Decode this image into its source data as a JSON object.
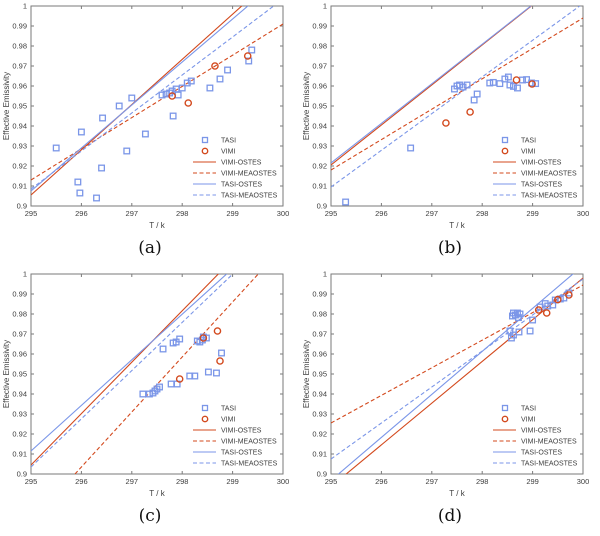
{
  "figure": {
    "background": "#ffffff"
  },
  "colors": {
    "tasi": "#7b96e8",
    "vimi": "#d3491d",
    "axis_box": "#7a7a7a",
    "tick_text": "#3d3d3d",
    "caption": "#111111"
  },
  "chart_data": [
    {
      "id": "a",
      "caption": "(a)",
      "type": "scatter",
      "xlabel": "T / k",
      "ylabel": "Effective Emissivity",
      "xlim": [
        295,
        300
      ],
      "ylim": [
        0.9,
        1
      ],
      "xticks": [
        295,
        296,
        297,
        298,
        299,
        300
      ],
      "xticklabels": [
        "295",
        "296",
        "297",
        "298",
        "299",
        "300"
      ],
      "yticks": [
        0.9,
        0.91,
        0.92,
        0.93,
        0.94,
        0.95,
        0.96,
        0.97,
        0.98,
        0.99,
        1
      ],
      "yticklabels": [
        "0.9",
        "0.91",
        "0.92",
        "0.93",
        "0.94",
        "0.95",
        "0.96",
        "0.97",
        "0.98",
        "0.99",
        "1"
      ],
      "grid": false,
      "legend_position": "inside-lower-right",
      "series": [
        {
          "name": "TASI",
          "type": "scatter",
          "marker": "square",
          "color_key": "tasi",
          "points": [
            [
              295.5,
              0.929
            ],
            [
              295.93,
              0.912
            ],
            [
              295.97,
              0.9065
            ],
            [
              296.0,
              0.937
            ],
            [
              296.3,
              0.904
            ],
            [
              296.4,
              0.919
            ],
            [
              296.42,
              0.944
            ],
            [
              296.75,
              0.95
            ],
            [
              296.9,
              0.9275
            ],
            [
              297.0,
              0.954
            ],
            [
              297.27,
              0.936
            ],
            [
              297.6,
              0.9555
            ],
            [
              297.68,
              0.956
            ],
            [
              297.75,
              0.9565
            ],
            [
              297.8,
              0.9575
            ],
            [
              297.82,
              0.945
            ],
            [
              297.88,
              0.9585
            ],
            [
              297.92,
              0.9555
            ],
            [
              298.0,
              0.959
            ],
            [
              298.1,
              0.9615
            ],
            [
              298.18,
              0.9625
            ],
            [
              298.55,
              0.959
            ],
            [
              298.75,
              0.9635
            ],
            [
              298.9,
              0.968
            ],
            [
              299.32,
              0.9725
            ],
            [
              299.38,
              0.978
            ]
          ]
        },
        {
          "name": "VIMI",
          "type": "scatter",
          "marker": "circle",
          "color_key": "vimi",
          "points": [
            [
              297.8,
              0.955
            ],
            [
              298.12,
              0.9515
            ],
            [
              298.65,
              0.97
            ],
            [
              299.3,
              0.975
            ]
          ]
        },
        {
          "name": "VIMI-OSTES",
          "type": "line",
          "style": "solid",
          "color_key": "vimi",
          "endpoints": [
            [
              295,
              0.9055
            ],
            [
              300,
              1.0185
            ]
          ]
        },
        {
          "name": "VIMI-MEAOSTES",
          "type": "line",
          "style": "dashed",
          "color_key": "vimi",
          "endpoints": [
            [
              295,
              0.913
            ],
            [
              300,
              0.991
            ]
          ]
        },
        {
          "name": "TASI-OSTES",
          "type": "line",
          "style": "solid",
          "color_key": "tasi",
          "endpoints": [
            [
              295,
              0.9075
            ],
            [
              300,
              1.015
            ]
          ]
        },
        {
          "name": "TASI-MEAOSTES",
          "type": "line",
          "style": "dashed",
          "color_key": "tasi",
          "endpoints": [
            [
              295,
              0.9085
            ],
            [
              300,
              1.0035
            ]
          ]
        }
      ]
    },
    {
      "id": "b",
      "caption": "(b)",
      "type": "scatter",
      "xlabel": "T / k",
      "ylabel": "Effective Emissivity",
      "xlim": [
        295,
        300
      ],
      "ylim": [
        0.9,
        1
      ],
      "xticks": [
        295,
        296,
        297,
        298,
        299,
        300
      ],
      "xticklabels": [
        "295",
        "296",
        "297",
        "298",
        "299",
        "300"
      ],
      "yticks": [
        0.9,
        0.91,
        0.92,
        0.93,
        0.94,
        0.95,
        0.96,
        0.97,
        0.98,
        0.99,
        1
      ],
      "yticklabels": [
        "0.9",
        "0.91",
        "0.92",
        "0.93",
        "0.94",
        "0.95",
        "0.96",
        "0.97",
        "0.98",
        "0.99",
        "1"
      ],
      "grid": false,
      "legend_position": "inside-lower-right",
      "series": [
        {
          "name": "TASI",
          "type": "scatter",
          "marker": "square",
          "color_key": "tasi",
          "points": [
            [
              295.29,
              0.902
            ],
            [
              296.58,
              0.929
            ],
            [
              297.45,
              0.9585
            ],
            [
              297.5,
              0.96
            ],
            [
              297.55,
              0.9605
            ],
            [
              297.62,
              0.9595
            ],
            [
              297.7,
              0.9605
            ],
            [
              297.84,
              0.953
            ],
            [
              297.9,
              0.956
            ],
            [
              298.15,
              0.9615
            ],
            [
              298.22,
              0.9618
            ],
            [
              298.35,
              0.9612
            ],
            [
              298.45,
              0.9635
            ],
            [
              298.52,
              0.9645
            ],
            [
              298.55,
              0.9605
            ],
            [
              298.62,
              0.9598
            ],
            [
              298.7,
              0.959
            ],
            [
              298.8,
              0.963
            ],
            [
              298.88,
              0.9632
            ],
            [
              298.98,
              0.9615
            ],
            [
              299.06,
              0.9612
            ]
          ]
        },
        {
          "name": "VIMI",
          "type": "scatter",
          "marker": "circle",
          "color_key": "vimi",
          "points": [
            [
              297.28,
              0.9415
            ],
            [
              297.76,
              0.947
            ],
            [
              298.68,
              0.963
            ],
            [
              298.99,
              0.961
            ]
          ]
        },
        {
          "name": "VIMI-OSTES",
          "type": "line",
          "style": "solid",
          "color_key": "vimi",
          "endpoints": [
            [
              295,
              0.9205
            ],
            [
              300,
              1.0205
            ]
          ]
        },
        {
          "name": "VIMI-MEAOSTES",
          "type": "line",
          "style": "dashed",
          "color_key": "vimi",
          "endpoints": [
            [
              295,
              0.918
            ],
            [
              300,
              0.994
            ]
          ]
        },
        {
          "name": "TASI-OSTES",
          "type": "line",
          "style": "solid",
          "color_key": "tasi",
          "endpoints": [
            [
              295,
              0.9215
            ],
            [
              300,
              1.0205
            ]
          ]
        },
        {
          "name": "TASI-MEAOSTES",
          "type": "line",
          "style": "dashed",
          "color_key": "tasi",
          "endpoints": [
            [
              295,
              0.9095
            ],
            [
              300,
              1.0012
            ]
          ]
        }
      ]
    },
    {
      "id": "c",
      "caption": "(c)",
      "type": "scatter",
      "xlabel": "T / k",
      "ylabel": "Effective Emissivity",
      "xlim": [
        295,
        300
      ],
      "ylim": [
        0.9,
        1
      ],
      "xticks": [
        295,
        296,
        297,
        298,
        299,
        300
      ],
      "xticklabels": [
        "295",
        "296",
        "297",
        "298",
        "299",
        "300"
      ],
      "yticks": [
        0.9,
        0.91,
        0.92,
        0.93,
        0.94,
        0.95,
        0.96,
        0.97,
        0.98,
        0.99,
        1
      ],
      "yticklabels": [
        "0.9",
        "0.91",
        "0.92",
        "0.93",
        "0.94",
        "0.95",
        "0.96",
        "0.97",
        "0.98",
        "0.99",
        "1"
      ],
      "grid": false,
      "legend_position": "inside-lower-right",
      "series": [
        {
          "name": "TASI",
          "type": "scatter",
          "marker": "square",
          "color_key": "tasi",
          "points": [
            [
              297.22,
              0.94
            ],
            [
              297.35,
              0.94
            ],
            [
              297.42,
              0.9405
            ],
            [
              297.46,
              0.9415
            ],
            [
              297.5,
              0.9425
            ],
            [
              297.55,
              0.9435
            ],
            [
              297.62,
              0.9625
            ],
            [
              297.78,
              0.945
            ],
            [
              297.82,
              0.9655
            ],
            [
              297.88,
              0.966
            ],
            [
              297.9,
              0.945
            ],
            [
              297.95,
              0.9675
            ],
            [
              298.15,
              0.949
            ],
            [
              298.25,
              0.949
            ],
            [
              298.3,
              0.9665
            ],
            [
              298.35,
              0.966
            ],
            [
              298.4,
              0.967
            ],
            [
              298.42,
              0.9685
            ],
            [
              298.48,
              0.968
            ],
            [
              298.52,
              0.951
            ],
            [
              298.68,
              0.9505
            ],
            [
              298.78,
              0.9605
            ]
          ]
        },
        {
          "name": "VIMI",
          "type": "scatter",
          "marker": "circle",
          "color_key": "vimi",
          "points": [
            [
              297.95,
              0.9475
            ],
            [
              298.42,
              0.968
            ],
            [
              298.7,
              0.9715
            ],
            [
              298.75,
              0.9565
            ]
          ]
        },
        {
          "name": "VIMI-OSTES",
          "type": "line",
          "style": "solid",
          "color_key": "vimi",
          "endpoints": [
            [
              295,
              0.9045
            ],
            [
              300,
              1.033
            ]
          ]
        },
        {
          "name": "VIMI-MEAOSTES",
          "type": "line",
          "style": "dashed",
          "color_key": "vimi",
          "endpoints": [
            [
              295,
              0.876
            ],
            [
              300,
              1.0135
            ]
          ]
        },
        {
          "name": "TASI-OSTES",
          "type": "line",
          "style": "solid",
          "color_key": "tasi",
          "endpoints": [
            [
              295,
              0.9115
            ],
            [
              300,
              1.0255
            ]
          ]
        },
        {
          "name": "TASI-MEAOSTES",
          "type": "line",
          "style": "dashed",
          "color_key": "tasi",
          "endpoints": [
            [
              295,
              0.9035
            ],
            [
              300,
              1.024
            ]
          ]
        }
      ]
    },
    {
      "id": "d",
      "caption": "(d)",
      "type": "scatter",
      "xlabel": "T / k",
      "ylabel": "Effective Emissivity",
      "xlim": [
        295,
        300
      ],
      "ylim": [
        0.9,
        1
      ],
      "xticks": [
        295,
        296,
        297,
        298,
        299,
        300
      ],
      "xticklabels": [
        "295",
        "296",
        "297",
        "298",
        "299",
        "300"
      ],
      "yticks": [
        0.9,
        0.91,
        0.92,
        0.93,
        0.94,
        0.95,
        0.96,
        0.97,
        0.98,
        0.99,
        1
      ],
      "yticklabels": [
        "0.9",
        "0.91",
        "0.92",
        "0.93",
        "0.94",
        "0.95",
        "0.96",
        "0.97",
        "0.98",
        "0.99",
        "1"
      ],
      "grid": false,
      "legend_position": "inside-lower-right",
      "series": [
        {
          "name": "TASI",
          "type": "scatter",
          "marker": "square",
          "color_key": "tasi",
          "points": [
            [
              298.55,
              0.9715
            ],
            [
              298.58,
              0.968
            ],
            [
              298.62,
              0.9695
            ],
            [
              298.6,
              0.979
            ],
            [
              298.62,
              0.9805
            ],
            [
              298.66,
              0.9795
            ],
            [
              298.7,
              0.9805
            ],
            [
              298.72,
              0.9782
            ],
            [
              298.75,
              0.98
            ],
            [
              298.73,
              0.971
            ],
            [
              298.95,
              0.9715
            ],
            [
              299.0,
              0.977
            ],
            [
              299.15,
              0.9835
            ],
            [
              299.25,
              0.9852
            ],
            [
              299.3,
              0.984
            ],
            [
              299.4,
              0.9845
            ],
            [
              299.45,
              0.987
            ],
            [
              299.55,
              0.9875
            ],
            [
              299.62,
              0.988
            ],
            [
              299.72,
              0.9905
            ]
          ]
        },
        {
          "name": "VIMI",
          "type": "scatter",
          "marker": "circle",
          "color_key": "vimi",
          "points": [
            [
              299.12,
              0.982
            ],
            [
              299.28,
              0.9805
            ],
            [
              299.5,
              0.9872
            ],
            [
              299.72,
              0.9895
            ]
          ]
        },
        {
          "name": "VIMI-OSTES",
          "type": "line",
          "style": "solid",
          "color_key": "vimi",
          "endpoints": [
            [
              295,
              0.8937
            ],
            [
              300,
              0.998
            ]
          ]
        },
        {
          "name": "VIMI-MEAOSTES",
          "type": "line",
          "style": "dashed",
          "color_key": "vimi",
          "endpoints": [
            [
              295,
              0.9255
            ],
            [
              300,
              0.9945
            ]
          ]
        },
        {
          "name": "TASI-OSTES",
          "type": "line",
          "style": "solid",
          "color_key": "tasi",
          "endpoints": [
            [
              295,
              0.8968
            ],
            [
              300,
              1.0043
            ]
          ]
        },
        {
          "name": "TASI-MEAOSTES",
          "type": "line",
          "style": "dashed",
          "color_key": "tasi",
          "endpoints": [
            [
              295,
              0.9075
            ],
            [
              300,
              0.9975
            ]
          ]
        }
      ]
    }
  ]
}
